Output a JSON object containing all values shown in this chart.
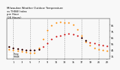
{
  "title": "Milwaukee Weather Outdoor Temperature\nvs THSW Index\nper Hour\n(24 Hours)",
  "hours": [
    0,
    1,
    2,
    3,
    4,
    5,
    6,
    7,
    8,
    9,
    10,
    11,
    12,
    13,
    14,
    15,
    16,
    17,
    18,
    19,
    20,
    21,
    22,
    23
  ],
  "temp": [
    50,
    48,
    47,
    46,
    45,
    44,
    44,
    46,
    50,
    56,
    62,
    66,
    68,
    70,
    71,
    70,
    68,
    64,
    60,
    57,
    55,
    53,
    52,
    51
  ],
  "thsw": [
    46,
    44,
    43,
    42,
    41,
    40,
    40,
    48,
    62,
    76,
    84,
    88,
    90,
    89,
    88,
    85,
    78,
    68,
    58,
    52,
    48,
    46,
    45,
    43
  ],
  "temp_color": "#cc0000",
  "thsw_color": "#ff8800",
  "black_color": "#000000",
  "bg_color": "#f8f8f8",
  "grid_color": "#999999",
  "ylim_min": 30,
  "ylim_max": 95,
  "yticks": [
    35,
    45,
    55,
    65,
    75,
    85
  ],
  "ytick_labels": [
    "35",
    "45",
    "55",
    "65",
    "75",
    "85"
  ],
  "xticks": [
    1,
    3,
    5,
    7,
    9,
    11,
    13,
    15,
    17,
    19,
    21,
    23
  ],
  "xtick_labels": [
    "1",
    "3",
    "5",
    "7",
    "9",
    "11",
    "13",
    "15",
    "17",
    "19",
    "21",
    "23"
  ],
  "vgrid_positions": [
    1,
    5,
    9,
    13,
    17,
    21
  ],
  "legend_temp": "Temp",
  "legend_thsw": "THSW",
  "dot_size": 2.5
}
